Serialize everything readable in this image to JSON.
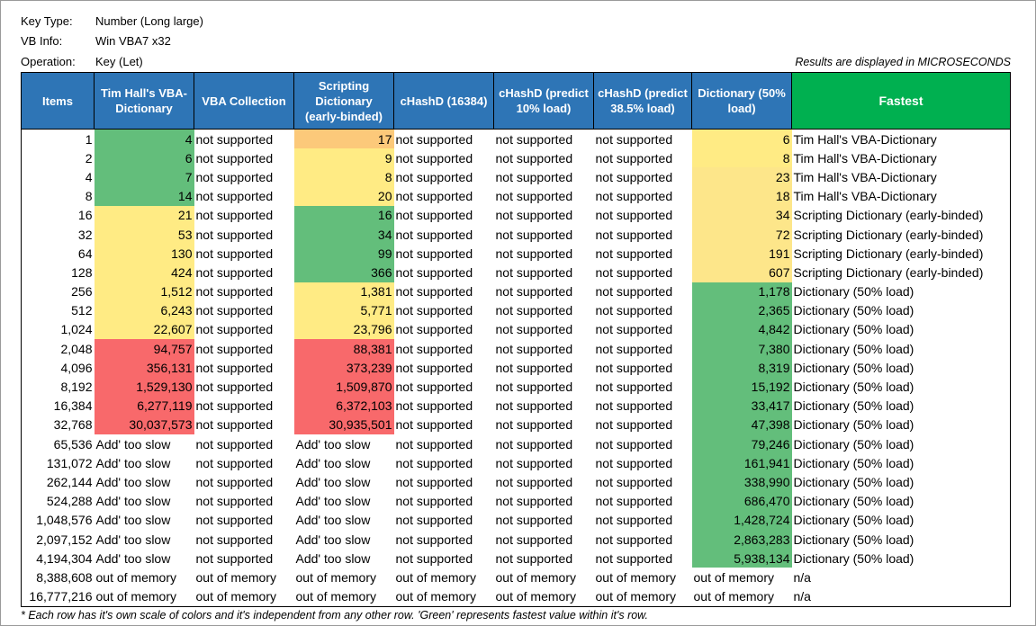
{
  "meta": {
    "key_type_label": "Key Type:",
    "key_type_value": "Number (Long large)",
    "vb_info_label": "VB Info:",
    "vb_info_value": "Win VBA7 x32",
    "operation_label": "Operation:",
    "operation_value": "Key (Let)",
    "units_note": "Results are displayed in MICROSECONDS"
  },
  "columns": [
    "Items",
    "Tim Hall's VBA-Dictionary",
    "VBA Collection",
    "Scripting Dictionary (early-binded)",
    "cHashD (16384)",
    "cHashD (predict 10% load)",
    "cHashD (predict 38.5% load)",
    "Dictionary (50% load)",
    "Fastest"
  ],
  "colors": {
    "header_blue": "#2e75b6",
    "header_green": "#00b050",
    "fastest": "#63be7b",
    "middle": "#ffeb84",
    "slow": "#f8696b"
  },
  "rows": [
    {
      "items": "1",
      "tim": "4",
      "coll": "not supported",
      "scr": "17",
      "ch16": "not supported",
      "ch10": "not supported",
      "ch38": "not supported",
      "dict": "6",
      "fastest": "Tim Hall's VBA-Dictionary"
    },
    {
      "items": "2",
      "tim": "6",
      "coll": "not supported",
      "scr": "9",
      "ch16": "not supported",
      "ch10": "not supported",
      "ch38": "not supported",
      "dict": "8",
      "fastest": "Tim Hall's VBA-Dictionary"
    },
    {
      "items": "4",
      "tim": "7",
      "coll": "not supported",
      "scr": "8",
      "ch16": "not supported",
      "ch10": "not supported",
      "ch38": "not supported",
      "dict": "23",
      "fastest": "Tim Hall's VBA-Dictionary"
    },
    {
      "items": "8",
      "tim": "14",
      "coll": "not supported",
      "scr": "20",
      "ch16": "not supported",
      "ch10": "not supported",
      "ch38": "not supported",
      "dict": "18",
      "fastest": "Tim Hall's VBA-Dictionary"
    },
    {
      "items": "16",
      "tim": "21",
      "coll": "not supported",
      "scr": "16",
      "ch16": "not supported",
      "ch10": "not supported",
      "ch38": "not supported",
      "dict": "34",
      "fastest": "Scripting Dictionary (early-binded)"
    },
    {
      "items": "32",
      "tim": "53",
      "coll": "not supported",
      "scr": "34",
      "ch16": "not supported",
      "ch10": "not supported",
      "ch38": "not supported",
      "dict": "72",
      "fastest": "Scripting Dictionary (early-binded)"
    },
    {
      "items": "64",
      "tim": "130",
      "coll": "not supported",
      "scr": "99",
      "ch16": "not supported",
      "ch10": "not supported",
      "ch38": "not supported",
      "dict": "191",
      "fastest": "Scripting Dictionary (early-binded)"
    },
    {
      "items": "128",
      "tim": "424",
      "coll": "not supported",
      "scr": "366",
      "ch16": "not supported",
      "ch10": "not supported",
      "ch38": "not supported",
      "dict": "607",
      "fastest": "Scripting Dictionary (early-binded)"
    },
    {
      "items": "256",
      "tim": "1,512",
      "coll": "not supported",
      "scr": "1,381",
      "ch16": "not supported",
      "ch10": "not supported",
      "ch38": "not supported",
      "dict": "1,178",
      "fastest": "Dictionary (50% load)"
    },
    {
      "items": "512",
      "tim": "6,243",
      "coll": "not supported",
      "scr": "5,771",
      "ch16": "not supported",
      "ch10": "not supported",
      "ch38": "not supported",
      "dict": "2,365",
      "fastest": "Dictionary (50% load)"
    },
    {
      "items": "1,024",
      "tim": "22,607",
      "coll": "not supported",
      "scr": "23,796",
      "ch16": "not supported",
      "ch10": "not supported",
      "ch38": "not supported",
      "dict": "4,842",
      "fastest": "Dictionary (50% load)"
    },
    {
      "items": "2,048",
      "tim": "94,757",
      "coll": "not supported",
      "scr": "88,381",
      "ch16": "not supported",
      "ch10": "not supported",
      "ch38": "not supported",
      "dict": "7,380",
      "fastest": "Dictionary (50% load)"
    },
    {
      "items": "4,096",
      "tim": "356,131",
      "coll": "not supported",
      "scr": "373,239",
      "ch16": "not supported",
      "ch10": "not supported",
      "ch38": "not supported",
      "dict": "8,319",
      "fastest": "Dictionary (50% load)"
    },
    {
      "items": "8,192",
      "tim": "1,529,130",
      "coll": "not supported",
      "scr": "1,509,870",
      "ch16": "not supported",
      "ch10": "not supported",
      "ch38": "not supported",
      "dict": "15,192",
      "fastest": "Dictionary (50% load)"
    },
    {
      "items": "16,384",
      "tim": "6,277,119",
      "coll": "not supported",
      "scr": "6,372,103",
      "ch16": "not supported",
      "ch10": "not supported",
      "ch38": "not supported",
      "dict": "33,417",
      "fastest": "Dictionary (50% load)"
    },
    {
      "items": "32,768",
      "tim": "30,037,573",
      "coll": "not supported",
      "scr": "30,935,501",
      "ch16": "not supported",
      "ch10": "not supported",
      "ch38": "not supported",
      "dict": "47,398",
      "fastest": "Dictionary (50% load)"
    },
    {
      "items": "65,536",
      "tim": "Add' too slow",
      "coll": "not supported",
      "scr": "Add' too slow",
      "ch16": "not supported",
      "ch10": "not supported",
      "ch38": "not supported",
      "dict": "79,246",
      "fastest": "Dictionary (50% load)"
    },
    {
      "items": "131,072",
      "tim": "Add' too slow",
      "coll": "not supported",
      "scr": "Add' too slow",
      "ch16": "not supported",
      "ch10": "not supported",
      "ch38": "not supported",
      "dict": "161,941",
      "fastest": "Dictionary (50% load)"
    },
    {
      "items": "262,144",
      "tim": "Add' too slow",
      "coll": "not supported",
      "scr": "Add' too slow",
      "ch16": "not supported",
      "ch10": "not supported",
      "ch38": "not supported",
      "dict": "338,990",
      "fastest": "Dictionary (50% load)"
    },
    {
      "items": "524,288",
      "tim": "Add' too slow",
      "coll": "not supported",
      "scr": "Add' too slow",
      "ch16": "not supported",
      "ch10": "not supported",
      "ch38": "not supported",
      "dict": "686,470",
      "fastest": "Dictionary (50% load)"
    },
    {
      "items": "1,048,576",
      "tim": "Add' too slow",
      "coll": "not supported",
      "scr": "Add' too slow",
      "ch16": "not supported",
      "ch10": "not supported",
      "ch38": "not supported",
      "dict": "1,428,724",
      "fastest": "Dictionary (50% load)"
    },
    {
      "items": "2,097,152",
      "tim": "Add' too slow",
      "coll": "not supported",
      "scr": "Add' too slow",
      "ch16": "not supported",
      "ch10": "not supported",
      "ch38": "not supported",
      "dict": "2,863,283",
      "fastest": "Dictionary (50% load)"
    },
    {
      "items": "4,194,304",
      "tim": "Add' too slow",
      "coll": "not supported",
      "scr": "Add' too slow",
      "ch16": "not supported",
      "ch10": "not supported",
      "ch38": "not supported",
      "dict": "5,938,134",
      "fastest": "Dictionary (50% load)"
    },
    {
      "items": "8,388,608",
      "tim": "out of memory",
      "coll": "out of memory",
      "scr": "out of memory",
      "ch16": "out of memory",
      "ch10": "out of memory",
      "ch38": "out of memory",
      "dict": "out of memory",
      "fastest": "n/a"
    },
    {
      "items": "16,777,216",
      "tim": "out of memory",
      "coll": "out of memory",
      "scr": "out of memory",
      "ch16": "out of memory",
      "ch10": "out of memory",
      "ch38": "out of memory",
      "dict": "out of memory",
      "fastest": "n/a"
    }
  ],
  "footnote": "* Each row has it's own scale of colors and it's independent from any other row. 'Green' represents fastest value within it's row."
}
